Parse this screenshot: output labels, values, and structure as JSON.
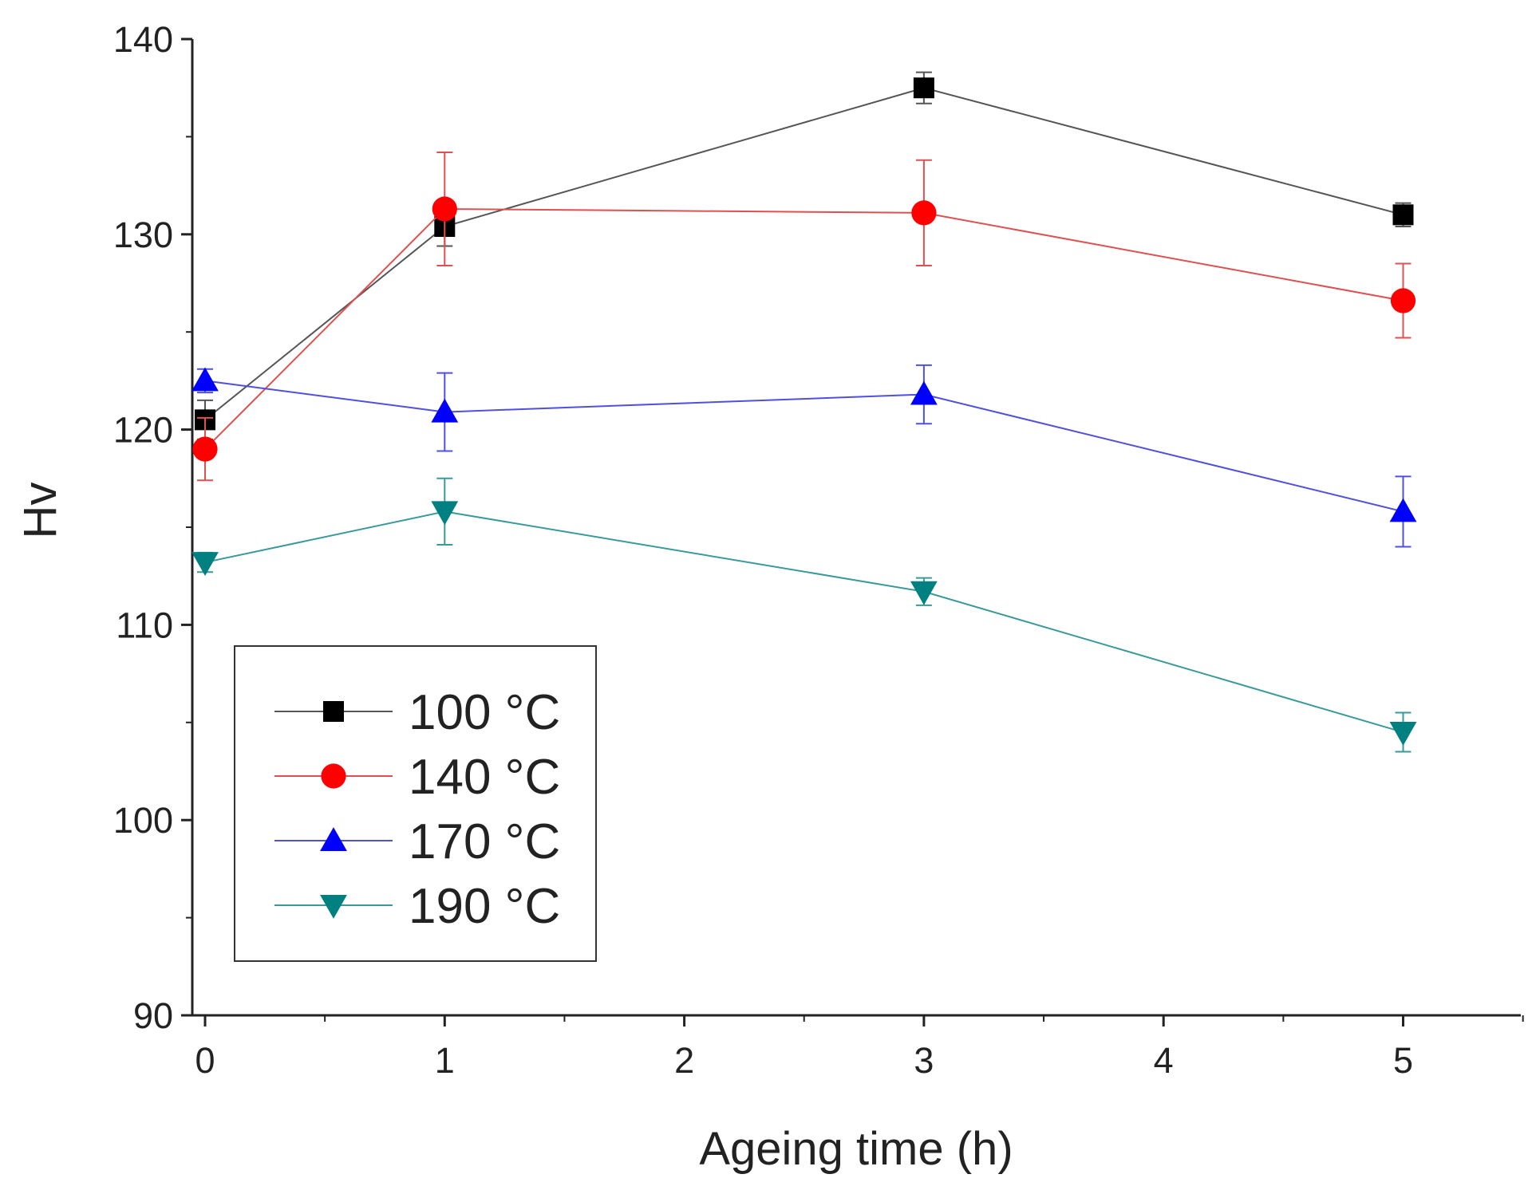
{
  "chart_data": {
    "type": "line",
    "title": "",
    "xlabel": "Ageing time (h)",
    "ylabel": "Hv",
    "xlim": [
      -0.05,
      5.5
    ],
    "ylim": [
      90,
      140
    ],
    "xticks": [
      0,
      1,
      2,
      3,
      4,
      5
    ],
    "yticks": [
      90,
      100,
      110,
      120,
      130,
      140
    ],
    "grid": false,
    "legend_position": "lower-left",
    "x": [
      0,
      1,
      3,
      5
    ],
    "series": [
      {
        "name": "100 °C",
        "color": "#000000",
        "line_color": "#555555",
        "marker": "square",
        "values": [
          120.5,
          130.4,
          137.5,
          131.0
        ],
        "errors": [
          1.0,
          1.0,
          0.8,
          0.6
        ]
      },
      {
        "name": "140 °C",
        "color": "#ff0000",
        "line_color": "#e05050",
        "marker": "circle",
        "values": [
          119.0,
          131.3,
          131.1,
          126.6
        ],
        "errors": [
          1.6,
          2.9,
          2.7,
          1.9
        ]
      },
      {
        "name": "170 °C",
        "color": "#0000ff",
        "line_color": "#5050e0",
        "marker": "triangle-up",
        "values": [
          122.5,
          120.9,
          121.8,
          115.8
        ],
        "errors": [
          0.6,
          2.0,
          1.5,
          1.8
        ]
      },
      {
        "name": "190 °C",
        "color": "#008080",
        "line_color": "#3a9a9a",
        "marker": "triangle-down",
        "values": [
          113.2,
          115.8,
          111.7,
          104.5
        ],
        "errors": [
          0.5,
          1.7,
          0.7,
          1.0
        ]
      }
    ]
  }
}
